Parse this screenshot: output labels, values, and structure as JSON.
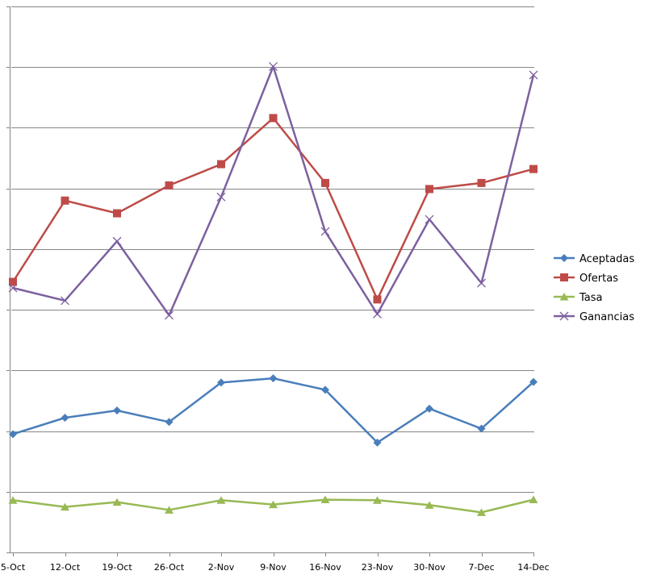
{
  "chart_data": {
    "type": "line",
    "title": "",
    "xlabel": "",
    "ylabel": "",
    "categories": [
      "5-Oct",
      "12-Oct",
      "19-Oct",
      "26-Oct",
      "2-Nov",
      "9-Nov",
      "16-Nov",
      "23-Nov",
      "30-Nov",
      "7-Dec",
      "14-Dec"
    ],
    "ylim": [
      0,
      9
    ],
    "grid": true,
    "legend_position": "right",
    "series": [
      {
        "name": "Aceptadas",
        "color": "#4a7ebb",
        "marker": "diamond",
        "values": [
          1.95,
          2.22,
          2.34,
          2.15,
          2.8,
          2.87,
          2.68,
          1.81,
          2.37,
          2.04,
          2.81
        ]
      },
      {
        "name": "Ofertas",
        "color": "#be4b48",
        "marker": "square",
        "values": [
          4.46,
          5.8,
          5.59,
          6.05,
          6.4,
          7.16,
          6.09,
          4.17,
          5.99,
          6.09,
          6.32
        ]
      },
      {
        "name": "Tasa",
        "color": "#98b954",
        "marker": "triangle",
        "values": [
          0.86,
          0.75,
          0.83,
          0.7,
          0.86,
          0.79,
          0.87,
          0.86,
          0.78,
          0.66,
          0.87
        ]
      },
      {
        "name": "Ganancias",
        "color": "#7d60a0",
        "marker": "x",
        "values": [
          4.36,
          4.15,
          5.13,
          3.91,
          5.86,
          8.01,
          5.29,
          3.93,
          5.49,
          4.44,
          7.87
        ]
      }
    ]
  }
}
